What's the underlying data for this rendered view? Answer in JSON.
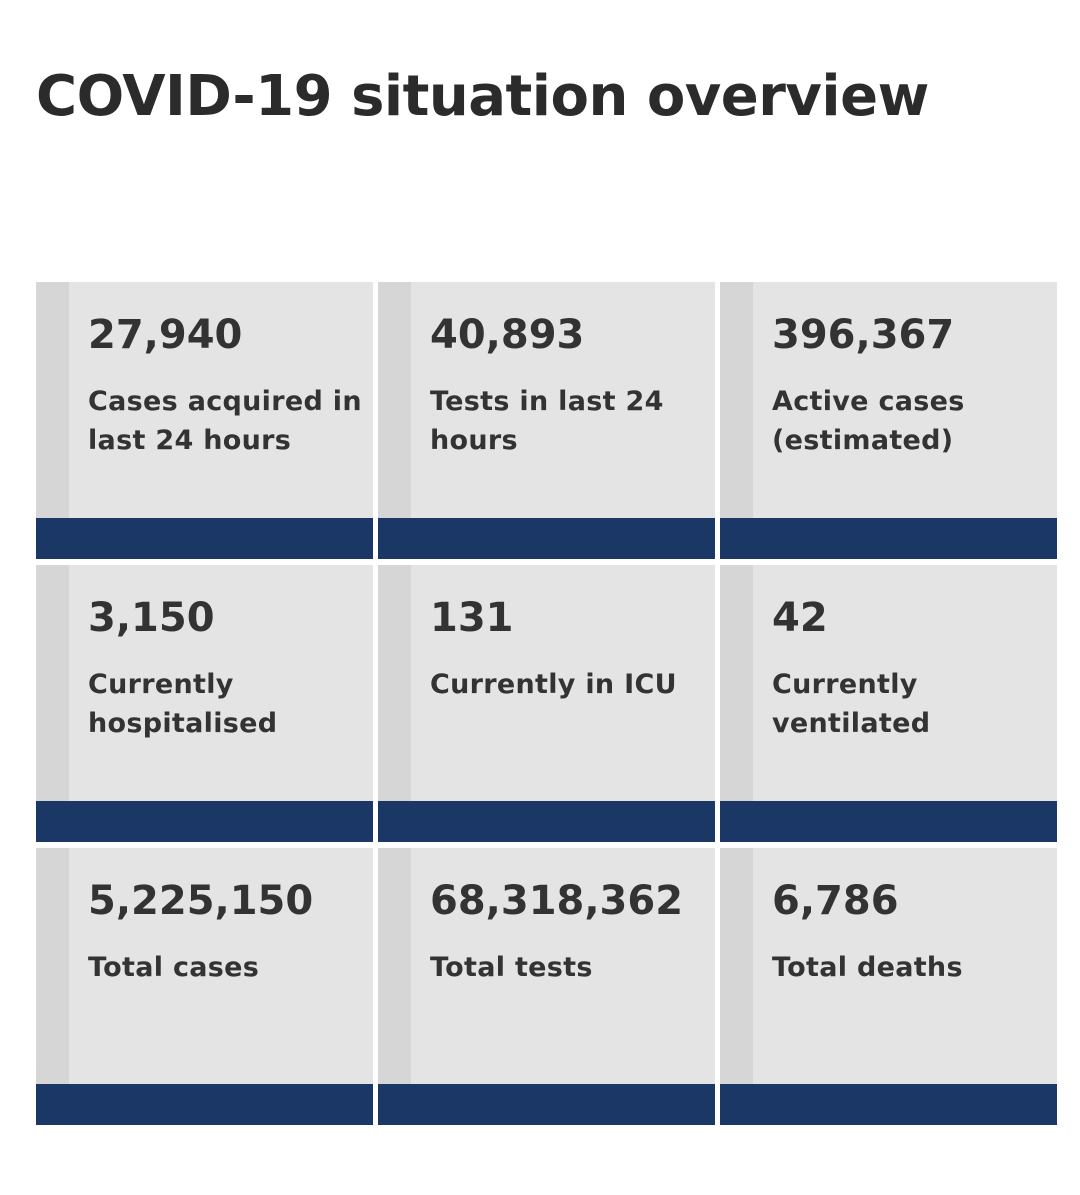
{
  "header": {
    "title": "COVID-19 situation overview"
  },
  "colors": {
    "card_background": "#e4e4e4",
    "card_edge": "#d6d6d6",
    "accent_bar": "#1b3766",
    "text": "#333333"
  },
  "stats": [
    {
      "value": "27,940",
      "label": "Cases acquired in last 24 hours"
    },
    {
      "value": "40,893",
      "label": "Tests in last 24 hours"
    },
    {
      "value": "396,367",
      "label": "Active cases (estimated)"
    },
    {
      "value": "3,150",
      "label": "Currently hospitalised"
    },
    {
      "value": "131",
      "label": "Currently in ICU"
    },
    {
      "value": "42",
      "label": "Currently ventilated"
    },
    {
      "value": "5,225,150",
      "label": "Total cases"
    },
    {
      "value": "68,318,362",
      "label": "Total tests"
    },
    {
      "value": "6,786",
      "label": "Total deaths"
    }
  ]
}
